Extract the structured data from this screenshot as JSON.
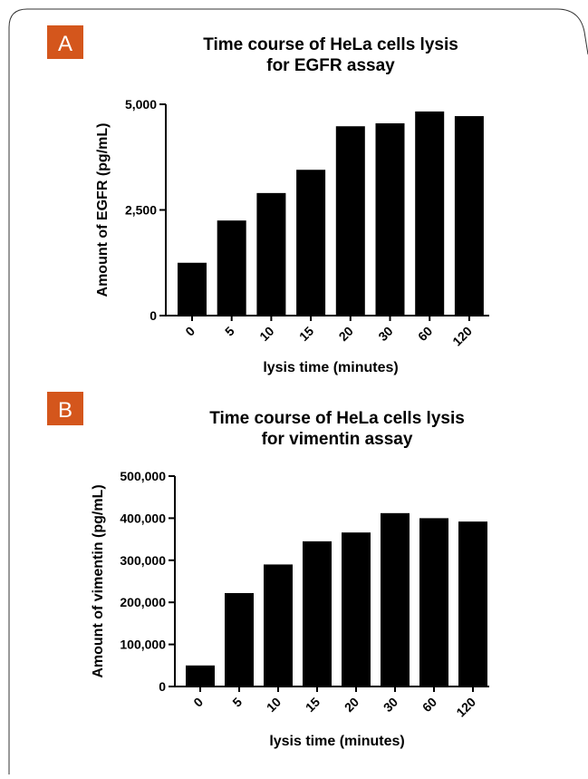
{
  "chart_data": [
    {
      "type": "bar",
      "panel_label": "A",
      "title": [
        "Time course of HeLa cells lysis",
        "for EGFR assay"
      ],
      "x_label": "lysis time (minutes)",
      "y_label": "Amount of EGFR (pg/mL)",
      "categories": [
        "0",
        "5",
        "10",
        "15",
        "20",
        "30",
        "60",
        "120"
      ],
      "values": [
        1250,
        2250,
        2900,
        3450,
        4480,
        4550,
        4830,
        4720
      ],
      "color": "#000000",
      "ylim": [
        0,
        5000
      ],
      "yticks": [
        0,
        {
          "value": 2500,
          "label": "2,500"
        },
        {
          "value": 5000,
          "label": "5,000"
        }
      ]
    },
    {
      "type": "bar",
      "panel_label": "B",
      "title": [
        "Time course of HeLa cells lysis",
        "for vimentin assay"
      ],
      "x_label": "lysis time (minutes)",
      "y_label": "Amount of vimentin (pg/mL)",
      "categories": [
        "0",
        "5",
        "10",
        "15",
        "20",
        "30",
        "60",
        "120"
      ],
      "values": [
        50000,
        222000,
        290000,
        345000,
        366000,
        412000,
        400000,
        392000
      ],
      "color": "#000000",
      "ylim": [
        0,
        500000
      ],
      "yticks": [
        0,
        {
          "value": 100000,
          "label": "100,000"
        },
        {
          "value": 200000,
          "label": "200,000"
        },
        {
          "value": 300000,
          "label": "300,000"
        },
        {
          "value": 400000,
          "label": "400,000"
        },
        {
          "value": 500000,
          "label": "500,000"
        }
      ]
    }
  ]
}
